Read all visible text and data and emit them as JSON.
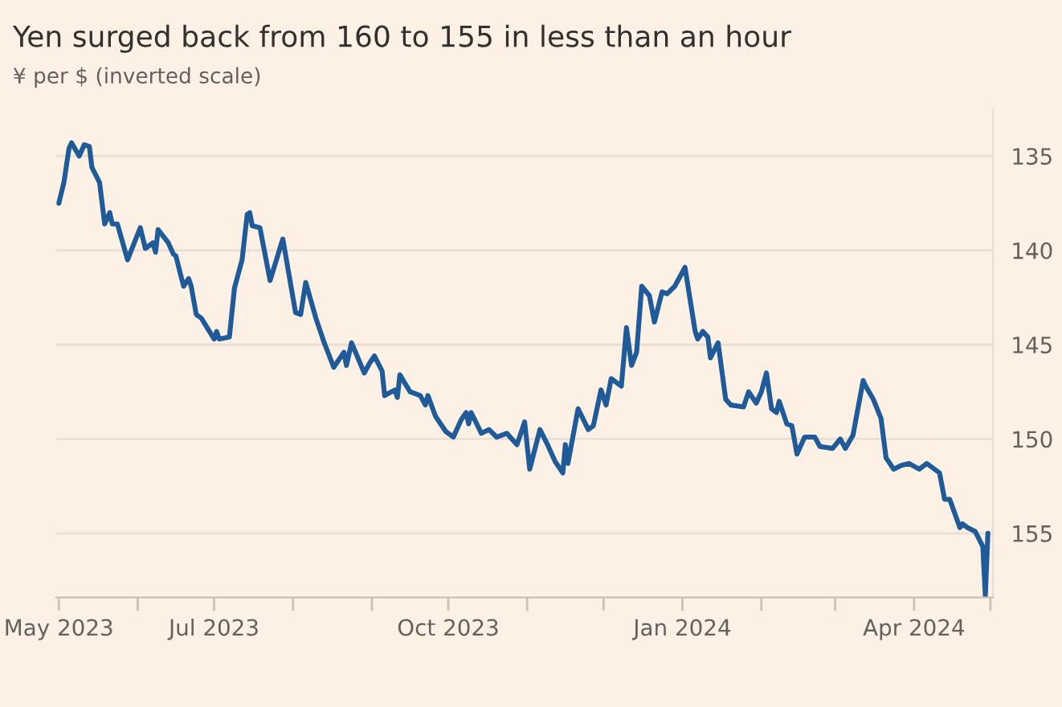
{
  "chart_data": {
    "type": "line",
    "title": "Yen surged back from 160 to 155 in less than an hour",
    "subtitle": "¥ per $ (inverted scale)",
    "x": [
      "2023-05-01",
      "2023-05-03",
      "2023-05-05",
      "2023-05-06",
      "2023-05-09",
      "2023-05-11",
      "2023-05-13",
      "2023-05-14",
      "2023-05-17",
      "2023-05-19",
      "2023-05-21",
      "2023-05-22",
      "2023-05-24",
      "2023-05-28",
      "2023-06-02",
      "2023-06-04",
      "2023-06-07",
      "2023-06-08",
      "2023-06-09",
      "2023-06-13",
      "2023-06-15",
      "2023-06-16",
      "2023-06-19",
      "2023-06-21",
      "2023-06-22",
      "2023-06-24",
      "2023-06-26",
      "2023-07-01",
      "2023-07-02",
      "2023-07-03",
      "2023-07-07",
      "2023-07-09",
      "2023-07-12",
      "2023-07-14",
      "2023-07-15",
      "2023-07-16",
      "2023-07-19",
      "2023-07-23",
      "2023-07-28",
      "2023-08-02",
      "2023-08-04",
      "2023-08-06",
      "2023-08-10",
      "2023-08-13",
      "2023-08-15",
      "2023-08-17",
      "2023-08-21",
      "2023-08-22",
      "2023-08-24",
      "2023-08-29",
      "2023-08-31",
      "2023-09-02",
      "2023-09-05",
      "2023-09-06",
      "2023-09-10",
      "2023-09-11",
      "2023-09-12",
      "2023-09-16",
      "2023-09-20",
      "2023-09-22",
      "2023-09-23",
      "2023-09-26",
      "2023-09-30",
      "2023-10-03",
      "2023-10-06",
      "2023-10-08",
      "2023-10-09",
      "2023-10-10",
      "2023-10-14",
      "2023-10-17",
      "2023-10-20",
      "2023-10-24",
      "2023-10-28",
      "2023-10-31",
      "2023-11-02",
      "2023-11-06",
      "2023-11-09",
      "2023-11-12",
      "2023-11-15",
      "2023-11-16",
      "2023-11-17",
      "2023-11-21",
      "2023-11-25",
      "2023-11-27",
      "2023-11-30",
      "2023-12-02",
      "2023-12-04",
      "2023-12-08",
      "2023-12-10",
      "2023-12-12",
      "2023-12-14",
      "2023-12-16",
      "2023-12-19",
      "2023-12-21",
      "2023-12-24",
      "2023-12-26",
      "2023-12-29",
      "2024-01-02",
      "2024-01-06",
      "2024-01-07",
      "2024-01-09",
      "2024-01-11",
      "2024-01-12",
      "2024-01-15",
      "2024-01-18",
      "2024-01-20",
      "2024-01-25",
      "2024-01-27",
      "2024-01-30",
      "2024-02-01",
      "2024-02-03",
      "2024-02-05",
      "2024-02-07",
      "2024-02-08",
      "2024-02-11",
      "2024-02-13",
      "2024-02-15",
      "2024-02-18",
      "2024-02-22",
      "2024-02-24",
      "2024-02-29",
      "2024-03-03",
      "2024-03-05",
      "2024-03-08",
      "2024-03-12",
      "2024-03-13",
      "2024-03-16",
      "2024-03-19",
      "2024-03-21",
      "2024-03-24",
      "2024-03-27",
      "2024-03-30",
      "2024-04-03",
      "2024-04-06",
      "2024-04-11",
      "2024-04-13",
      "2024-04-15",
      "2024-04-19",
      "2024-04-20",
      "2024-04-22",
      "2024-04-25",
      "2024-04-28",
      "2024-04-29",
      "2024-04-30"
    ],
    "series": [
      {
        "color": "#1f5b99",
        "values": [
          137.5,
          136.4,
          134.6,
          134.3,
          135.0,
          134.4,
          134.5,
          135.6,
          136.4,
          138.6,
          138.0,
          138.6,
          138.6,
          140.5,
          138.8,
          139.9,
          139.6,
          140.1,
          138.9,
          139.6,
          140.2,
          140.3,
          141.9,
          141.5,
          141.9,
          143.4,
          143.6,
          144.7,
          144.3,
          144.7,
          144.6,
          142.0,
          140.5,
          138.1,
          138.0,
          138.7,
          138.8,
          141.6,
          139.4,
          143.3,
          143.4,
          141.7,
          143.6,
          144.8,
          145.5,
          146.2,
          145.4,
          146.1,
          144.9,
          146.5,
          146.0,
          145.6,
          146.4,
          147.7,
          147.4,
          147.8,
          146.6,
          147.5,
          147.7,
          148.2,
          147.7,
          148.8,
          149.6,
          149.9,
          149.0,
          148.6,
          149.2,
          148.6,
          149.7,
          149.5,
          149.9,
          149.7,
          150.3,
          149.1,
          151.6,
          149.5,
          150.3,
          151.2,
          151.8,
          150.3,
          151.3,
          148.4,
          149.5,
          149.3,
          147.4,
          148.2,
          146.8,
          147.2,
          144.1,
          146.1,
          145.4,
          141.9,
          142.4,
          143.8,
          142.2,
          142.3,
          141.9,
          140.9,
          144.3,
          144.7,
          144.3,
          144.6,
          145.7,
          144.9,
          147.9,
          148.2,
          148.3,
          147.5,
          148.1,
          147.5,
          146.5,
          148.4,
          148.6,
          148.0,
          149.2,
          149.3,
          150.8,
          149.9,
          149.9,
          150.4,
          150.5,
          150.0,
          150.5,
          149.8,
          146.9,
          147.2,
          147.9,
          148.9,
          151.0,
          151.6,
          151.4,
          151.3,
          151.6,
          151.3,
          151.8,
          153.2,
          153.2,
          154.7,
          154.5,
          154.7,
          154.9,
          155.7,
          158.3,
          155.0
        ]
      }
    ],
    "xlim": [
      "2023-04-30",
      "2024-05-02"
    ],
    "xticks": [
      {
        "value": "2023-05-01",
        "label": "May 2023"
      },
      {
        "value": "2023-06-01",
        "label": null
      },
      {
        "value": "2023-07-01",
        "label": "Jul 2023"
      },
      {
        "value": "2023-08-01",
        "label": null
      },
      {
        "value": "2023-09-01",
        "label": null
      },
      {
        "value": "2023-10-01",
        "label": "Oct 2023"
      },
      {
        "value": "2023-11-01",
        "label": null
      },
      {
        "value": "2023-12-01",
        "label": null
      },
      {
        "value": "2024-01-01",
        "label": "Jan 2024"
      },
      {
        "value": "2024-02-01",
        "label": null
      },
      {
        "value": "2024-03-01",
        "label": null
      },
      {
        "value": "2024-04-01",
        "label": "Apr 2024"
      },
      {
        "value": "2024-05-01",
        "label": null
      }
    ],
    "ylim": [
      158.4,
      132.5
    ],
    "yticks": [
      135,
      140,
      145,
      150,
      155
    ],
    "grid": "y",
    "line_style": "solid",
    "marker": "none"
  }
}
